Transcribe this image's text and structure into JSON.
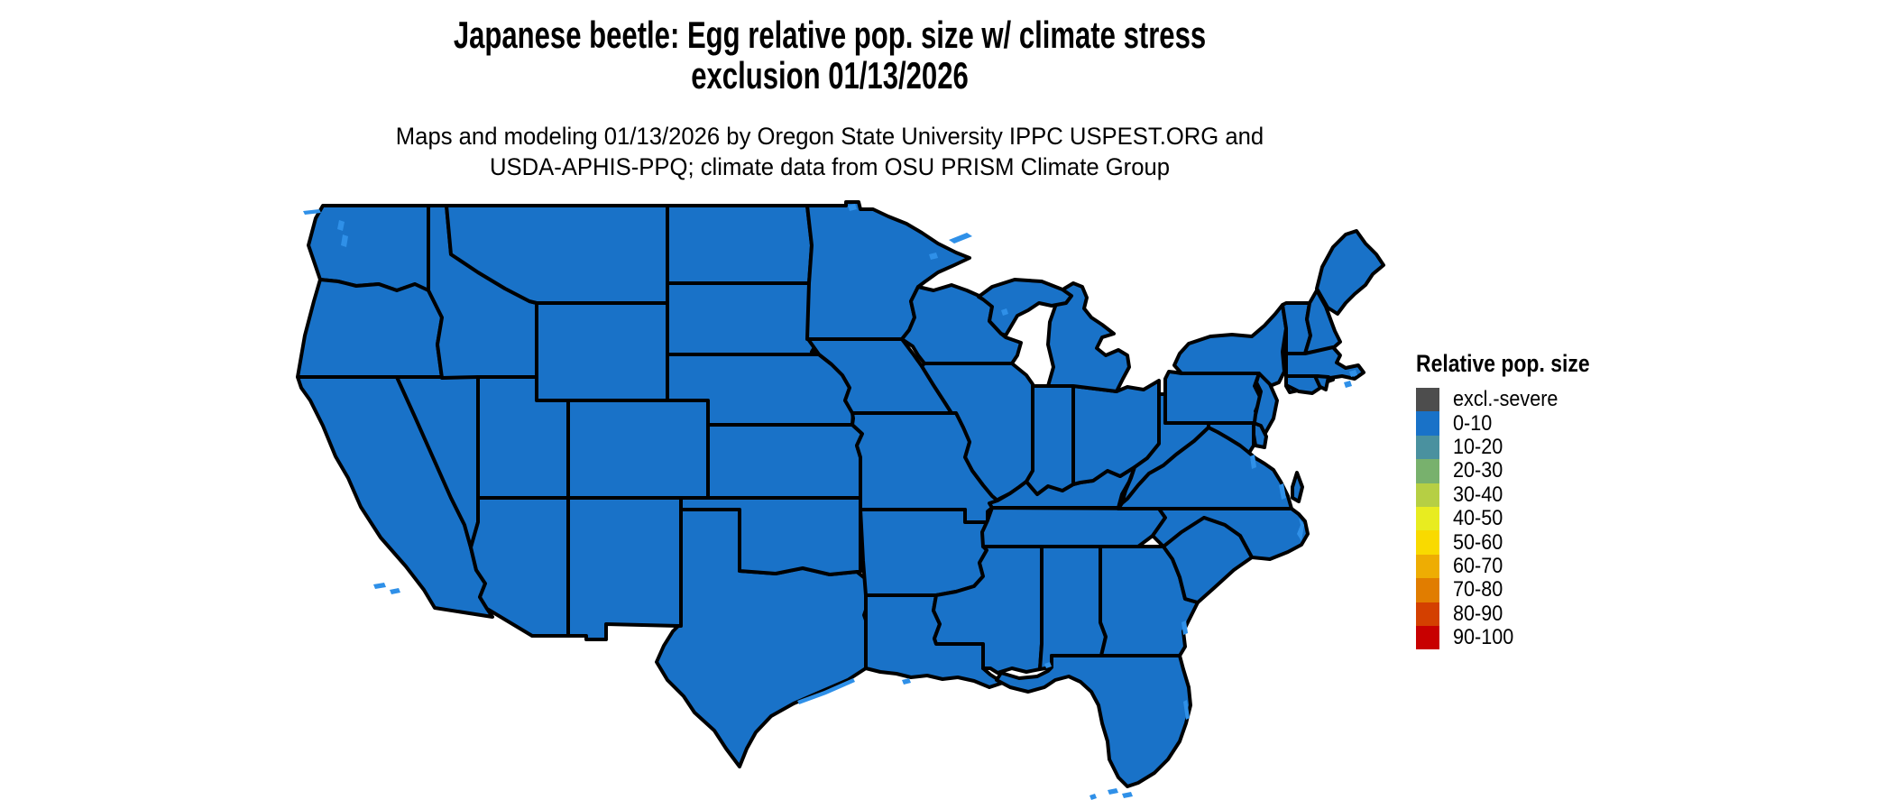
{
  "title": {
    "line1": "Japanese beetle: Egg relative pop. size w/ climate stress",
    "line2": "exclusion 01/13/2026"
  },
  "subtitle": {
    "line1": "Maps and modeling 01/13/2026 by Oregon State University IPPC USPEST.ORG and",
    "line2": "USDA-APHIS-PPQ; climate data from OSU PRISM Climate Group"
  },
  "legend": {
    "title": "Relative pop. size",
    "items": [
      {
        "label": "excl.-severe",
        "color": "#4d4d4d"
      },
      {
        "label": "0-10",
        "color": "#1972c8"
      },
      {
        "label": "10-20",
        "color": "#4a919f"
      },
      {
        "label": "20-30",
        "color": "#78b16d"
      },
      {
        "label": "30-40",
        "color": "#b6cf44"
      },
      {
        "label": "40-50",
        "color": "#e8ec20"
      },
      {
        "label": "50-60",
        "color": "#f9da00"
      },
      {
        "label": "60-70",
        "color": "#eead03"
      },
      {
        "label": "70-80",
        "color": "#e17d00"
      },
      {
        "label": "80-90",
        "color": "#d44000"
      },
      {
        "label": "90-100",
        "color": "#c80000"
      }
    ]
  },
  "map": {
    "region": "Contiguous United States",
    "all_states_class": "0-10",
    "state_fill_color": "#1972c8",
    "border_color": "#000000",
    "water_detail_color": "#2f90e8",
    "background_color": "#ffffff"
  }
}
